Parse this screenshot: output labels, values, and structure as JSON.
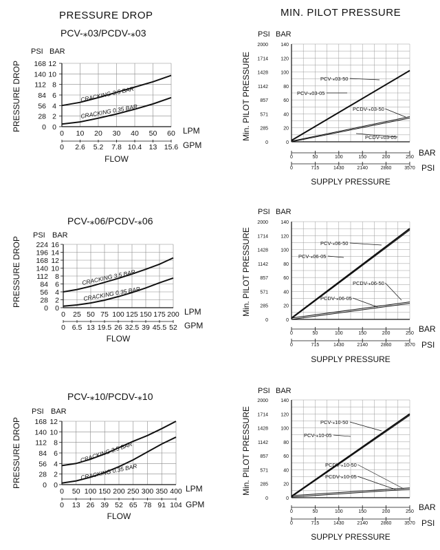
{
  "headers": {
    "left": "PRESSURE DROP",
    "right": "MIN. PILOT PRESSURE"
  },
  "chart_data": [
    {
      "type": "line",
      "title": "PCV-⁎03/PCDV-⁎03",
      "ylabel": "PRESSURE DROP",
      "xlabel": "FLOW",
      "y_units": [
        "PSI",
        "BAR"
      ],
      "x_units": [
        "LPM",
        "GPM"
      ],
      "bar_ticks": [
        "0",
        "2",
        "4",
        "6",
        "8",
        "10",
        "12"
      ],
      "psi_ticks": [
        "0",
        "28",
        "56",
        "84",
        "112",
        "140",
        "168"
      ],
      "lpm_ticks": [
        "0",
        "10",
        "20",
        "30",
        "40",
        "50",
        "60"
      ],
      "gpm_ticks": [
        "0",
        "2.6",
        "5.2",
        "7.8",
        "10.4",
        "13",
        "15.6"
      ],
      "xlim": [
        0,
        60
      ],
      "ylim": [
        0,
        12
      ],
      "series": [
        {
          "name": "CRACKING  3.5 BAR",
          "x": [
            0,
            10,
            20,
            30,
            40,
            50,
            60
          ],
          "y": [
            4.0,
            4.6,
            5.5,
            6.5,
            7.5,
            8.5,
            9.7
          ]
        },
        {
          "name": "CRACKING  0.35 BAR",
          "x": [
            0,
            10,
            20,
            30,
            40,
            50,
            60
          ],
          "y": [
            0.5,
            0.9,
            1.6,
            2.4,
            3.3,
            4.3,
            5.5
          ]
        }
      ]
    },
    {
      "type": "line",
      "title": "",
      "ylabel": "Min. PILOT PRESSURE",
      "xlabel": "SUPPLY PRESSURE",
      "y_units": [
        "PSI",
        "BAR"
      ],
      "x_units": [
        "BAR",
        "PSI"
      ],
      "bar_ticks": [
        "0",
        "20",
        "40",
        "60",
        "80",
        "100",
        "120",
        "140"
      ],
      "psi_ticks": [
        "0",
        "285",
        "571",
        "857",
        "1142",
        "1428",
        "1714",
        "2000"
      ],
      "xbar_ticks": [
        "0",
        "50",
        "100",
        "150",
        "200",
        "250"
      ],
      "xpsi_ticks": [
        "0",
        "715",
        "1430",
        "2140",
        "2860",
        "3570"
      ],
      "xlim": [
        0,
        250
      ],
      "ylim": [
        0,
        140
      ],
      "series": [
        {
          "name": "PCV-⁎03-50",
          "x": [
            0,
            250
          ],
          "y": [
            2,
            102
          ]
        },
        {
          "name": "PCV-⁎03-05",
          "x": [
            0,
            250
          ],
          "y": [
            2,
            102
          ]
        },
        {
          "name": "PCDV-⁎03-50",
          "x": [
            0,
            250
          ],
          "y": [
            1,
            36
          ]
        },
        {
          "name": "PCDV-⁎03-05",
          "x": [
            0,
            250
          ],
          "y": [
            0,
            34
          ]
        }
      ]
    },
    {
      "type": "line",
      "title": "PCV-⁎06/PCDV-⁎06",
      "ylabel": "PRESSURE DROP",
      "xlabel": "FLOW",
      "y_units": [
        "PSI",
        "BAR"
      ],
      "x_units": [
        "LPM",
        "GPM"
      ],
      "bar_ticks": [
        "0",
        "2",
        "4",
        "6",
        "8",
        "10",
        "12",
        "14",
        "16"
      ],
      "psi_ticks": [
        "0",
        "28",
        "56",
        "84",
        "112",
        "140",
        "168",
        "196",
        "224"
      ],
      "lpm_ticks": [
        "0",
        "25",
        "50",
        "75",
        "100",
        "125",
        "150",
        "175",
        "200"
      ],
      "gpm_ticks": [
        "0",
        "6.5",
        "13",
        "19.5",
        "26",
        "32.5",
        "39",
        "45.5",
        "52"
      ],
      "xlim": [
        0,
        200
      ],
      "ylim": [
        0,
        16
      ],
      "series": [
        {
          "name": "CRACKING  3.5 BAR",
          "x": [
            0,
            25,
            50,
            75,
            100,
            125,
            150,
            175,
            200
          ],
          "y": [
            4.0,
            4.6,
            5.4,
            6.4,
            7.4,
            8.5,
            9.7,
            11.0,
            12.6
          ]
        },
        {
          "name": "CRACKING  0.35 BAR",
          "x": [
            0,
            25,
            50,
            75,
            100,
            125,
            150,
            175,
            200
          ],
          "y": [
            0.4,
            0.7,
            1.2,
            1.9,
            2.8,
            3.8,
            5.0,
            6.3,
            7.5
          ]
        }
      ]
    },
    {
      "type": "line",
      "title": "",
      "ylabel": "Min. PILOT PRESSURE",
      "xlabel": "SUPPLY PRESSURE",
      "y_units": [
        "PSI",
        "BAR"
      ],
      "x_units": [
        "BAR",
        "PSI"
      ],
      "bar_ticks": [
        "0",
        "20",
        "40",
        "60",
        "80",
        "100",
        "120",
        "140"
      ],
      "psi_ticks": [
        "0",
        "285",
        "571",
        "857",
        "1142",
        "1428",
        "1714",
        "2000"
      ],
      "xbar_ticks": [
        "0",
        "50",
        "100",
        "150",
        "200",
        "250"
      ],
      "xpsi_ticks": [
        "0",
        "715",
        "1430",
        "2140",
        "2860",
        "3570"
      ],
      "xlim": [
        0,
        250
      ],
      "ylim": [
        0,
        140
      ],
      "series": [
        {
          "name": "PCV-⁎06-50",
          "x": [
            0,
            250
          ],
          "y": [
            2,
            130
          ]
        },
        {
          "name": "PCV-⁎06-05",
          "x": [
            0,
            250
          ],
          "y": [
            1,
            128
          ]
        },
        {
          "name": "PCDV-⁎06-50",
          "x": [
            0,
            250
          ],
          "y": [
            2,
            25
          ]
        },
        {
          "name": "PCDV-⁎06-05",
          "x": [
            0,
            250
          ],
          "y": [
            0,
            23
          ]
        }
      ]
    },
    {
      "type": "line",
      "title": "PCV-⁎10/PCDV-⁎10",
      "ylabel": "PRESSURE DROP",
      "xlabel": "FLOW",
      "y_units": [
        "PSI",
        "BAR"
      ],
      "x_units": [
        "LPM",
        "GPM"
      ],
      "bar_ticks": [
        "0",
        "2",
        "4",
        "6",
        "8",
        "10",
        "12"
      ],
      "psi_ticks": [
        "0",
        "28",
        "56",
        "84",
        "112",
        "140",
        "168"
      ],
      "lpm_ticks": [
        "0",
        "50",
        "100",
        "150",
        "200",
        "250",
        "300",
        "350",
        "400"
      ],
      "gpm_ticks": [
        "0",
        "13",
        "26",
        "39",
        "52",
        "65",
        "78",
        "91",
        "104"
      ],
      "xlim": [
        0,
        400
      ],
      "ylim": [
        0,
        12
      ],
      "series": [
        {
          "name": "CRACKING  3.5 BAR",
          "x": [
            0,
            50,
            100,
            150,
            200,
            250,
            300,
            350,
            400
          ],
          "y": [
            3.6,
            4.0,
            4.8,
            5.8,
            7.0,
            8.2,
            9.3,
            10.6,
            12.0
          ]
        },
        {
          "name": "CRACKING  0.35 BAR",
          "x": [
            0,
            50,
            100,
            150,
            200,
            250,
            300,
            350,
            400
          ],
          "y": [
            0.3,
            0.7,
            1.4,
            2.3,
            3.4,
            4.7,
            6.2,
            7.7,
            9.0
          ]
        }
      ]
    },
    {
      "type": "line",
      "title": "",
      "ylabel": "Min. PILOT PRESSURE",
      "xlabel": "SUPPLY PRESSURE",
      "y_units": [
        "PSI",
        "BAR"
      ],
      "x_units": [
        "BAR",
        "PSI"
      ],
      "bar_ticks": [
        "0",
        "20",
        "40",
        "60",
        "80",
        "100",
        "120",
        "140"
      ],
      "psi_ticks": [
        "0",
        "285",
        "571",
        "857",
        "1142",
        "1428",
        "1714",
        "2000"
      ],
      "xbar_ticks": [
        "0",
        "50",
        "100",
        "150",
        "200",
        "250"
      ],
      "xpsi_ticks": [
        "0",
        "715",
        "1430",
        "2140",
        "2860",
        "3570"
      ],
      "xlim": [
        0,
        250
      ],
      "ylim": [
        0,
        140
      ],
      "series": [
        {
          "name": "PCV-⁎10-50",
          "x": [
            0,
            250
          ],
          "y": [
            2,
            120
          ]
        },
        {
          "name": "PCV-⁎10-05",
          "x": [
            0,
            250
          ],
          "y": [
            1,
            118
          ]
        },
        {
          "name": "PCDV-⁎10-50",
          "x": [
            0,
            250
          ],
          "y": [
            3,
            14
          ]
        },
        {
          "name": "PCDV-⁎10-05",
          "x": [
            0,
            250
          ],
          "y": [
            1,
            12
          ]
        }
      ]
    }
  ]
}
